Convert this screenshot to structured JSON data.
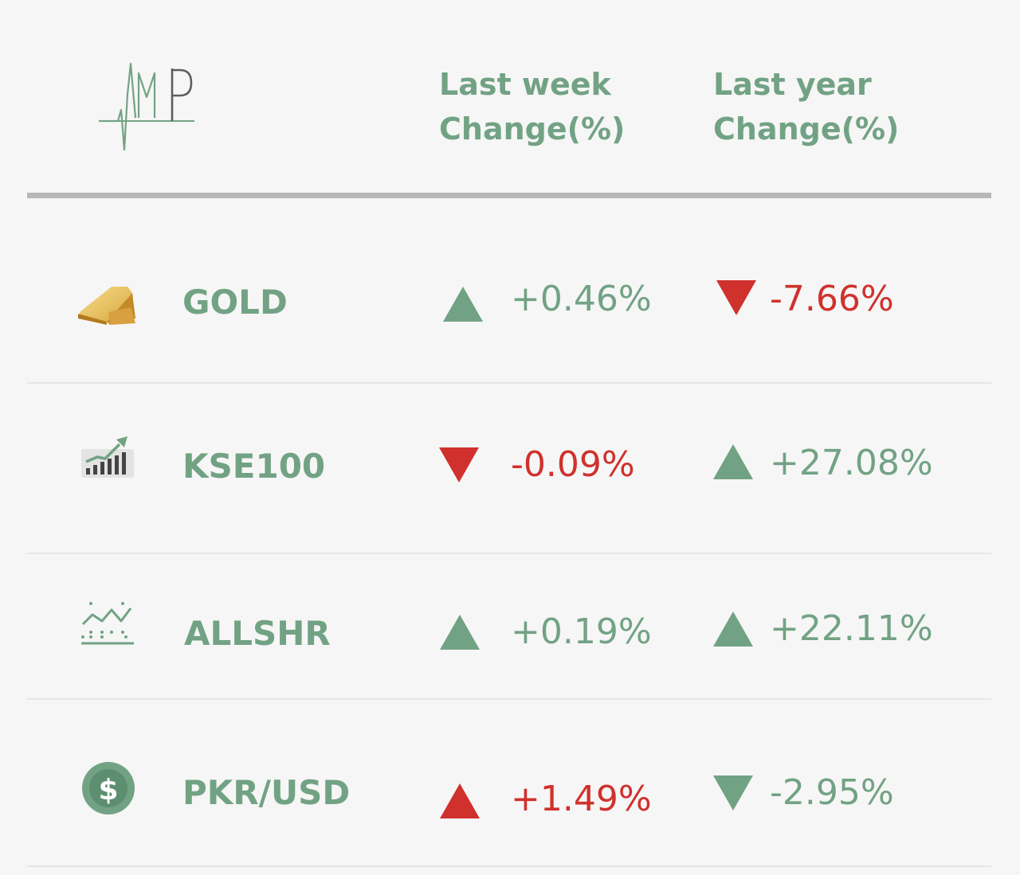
{
  "header": {
    "logo_icon": "amp-heartbeat-logo",
    "columns": [
      {
        "line1": "Last week",
        "line2": "Change(%)"
      },
      {
        "line1": "Last year",
        "line2": "Change(%)"
      }
    ]
  },
  "colors": {
    "positive": "#72a284",
    "negative": "#d0312d",
    "divider": "#b7b7b7",
    "background": "#f6f6f6"
  },
  "rows": [
    {
      "label": "GOLD",
      "icon": "gold-bar-icon",
      "week": {
        "text": "+0.46%",
        "direction": "up",
        "color": "#72a284"
      },
      "year": {
        "text": "-7.66%",
        "direction": "down",
        "color": "#d0312d"
      }
    },
    {
      "label": "KSE100",
      "icon": "stock-growth-chart-icon",
      "week": {
        "text": "-0.09%",
        "direction": "down",
        "color": "#d0312d"
      },
      "year": {
        "text": "+27.08%",
        "direction": "up",
        "color": "#72a284"
      }
    },
    {
      "label": "ALLSHR",
      "icon": "line-chart-icon",
      "week": {
        "text": "+0.19%",
        "direction": "up",
        "color": "#72a284"
      },
      "year": {
        "text": "+22.11%",
        "direction": "up",
        "color": "#72a284"
      }
    },
    {
      "label": "PKR/USD",
      "icon": "dollar-coin-icon",
      "week": {
        "text": "+1.49%",
        "direction": "up",
        "color": "#d0312d"
      },
      "year": {
        "text": "-2.95%",
        "direction": "down",
        "color": "#72a284"
      }
    }
  ]
}
